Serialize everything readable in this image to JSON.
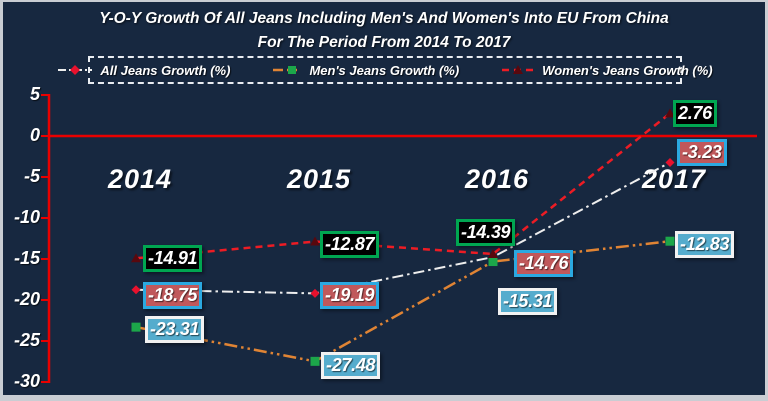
{
  "frame": {
    "background": "#172840",
    "border_color": "#c9cdd3"
  },
  "title": {
    "line1": "Y-O-Y Growth Of All Jeans Including Men's And Women's Into EU From China",
    "line2": "For The Period From 2014 To 2017"
  },
  "chart_data": {
    "type": "line",
    "categories": [
      "2014",
      "2015",
      "2016",
      "2017"
    ],
    "series": [
      {
        "name": "All Jeans Growth (%)",
        "values": [
          -18.75,
          -19.19,
          -14.76,
          -3.23
        ],
        "line_color": "#eeeeee",
        "line_style": "dash-dot",
        "marker": "diamond",
        "marker_color": "#e8112d",
        "label_bg": "#c0585b",
        "label_border": "#2ba9e1"
      },
      {
        "name": "Men's Jeans Growth (%)",
        "values": [
          -23.31,
          -27.48,
          -15.31,
          -12.83
        ],
        "line_color": "#e08434",
        "line_style": "dash-dot-dot",
        "marker": "square",
        "marker_color": "#1ca64a",
        "label_bg": "#55accd",
        "label_border": "#f2f2f2"
      },
      {
        "name": "Women's Jeans Growth (%)",
        "values": [
          -14.91,
          -12.87,
          -14.39,
          2.76
        ],
        "line_color": "#ed1c24",
        "line_style": "dash",
        "marker": "triangle",
        "marker_color": "#58080e",
        "label_bg": "#000000",
        "label_border": "#00a651"
      }
    ],
    "yticks": [
      5,
      0,
      -5,
      -10,
      -15,
      -20,
      -25,
      -30
    ],
    "ylim": [
      -30,
      5
    ],
    "xlabel": "",
    "ylabel": "",
    "axis_color": "#e90000",
    "zero_line": true,
    "grid": false,
    "legend_position": "top"
  }
}
